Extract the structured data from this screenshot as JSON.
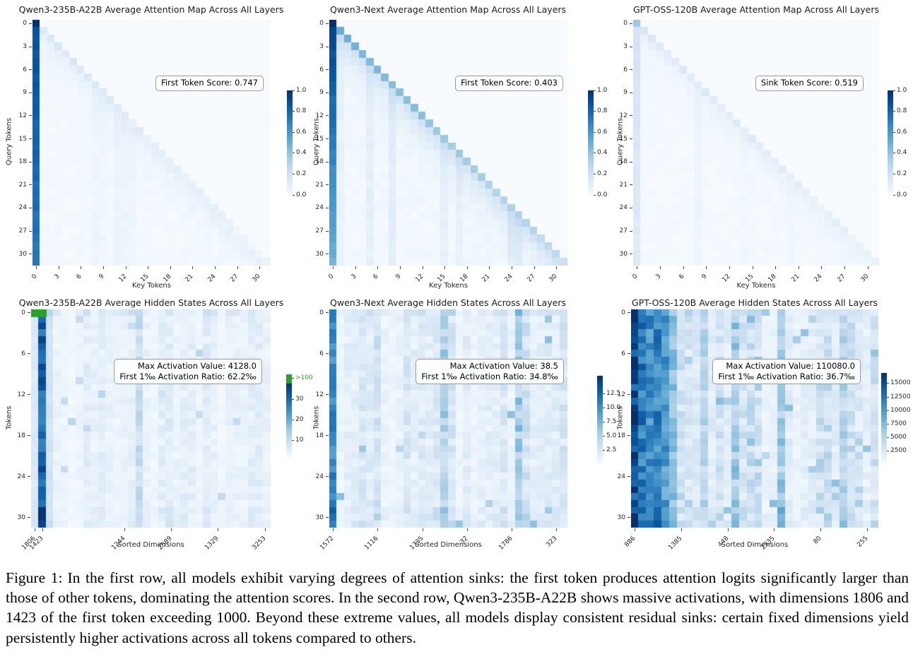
{
  "figure": {
    "caption_label": "Figure 1:",
    "caption_text": "In the first row, all models exhibit varying degrees of attention sinks: the first token produces attention logits significantly larger than those of other tokens, dominating the attention scores. In the second row, Qwen3-235B-A22B shows massive activations, with dimensions 1806 and 1423 of the first token exceeding 1000. Beyond these extreme values, all models display consistent residual sinks: certain fixed dimensions yield persistently higher activations across all tokens compared to others."
  },
  "colors": {
    "colormap": "Blues",
    "blues_stops": [
      "#f7fbff",
      "#deebf7",
      "#c6dbef",
      "#9ecae1",
      "#6baed6",
      "#4292c6",
      "#2171b5",
      "#08519c",
      "#08306b"
    ],
    "overflow_green": "#2ca02c",
    "text": "#262626"
  },
  "chart_data": [
    {
      "id": "qwen3-235b-attention",
      "type": "heatmap",
      "title": "Qwen3-235B-A22B Average Attention Map Across All Layers",
      "xlabel": "Key Tokens",
      "ylabel": "Query Tokens",
      "rows": 32,
      "cols": 32,
      "value_range": [
        0.0,
        1.0
      ],
      "x_ticks": {
        "labels": [
          "0",
          "3",
          "6",
          "9",
          "12",
          "15",
          "18",
          "21",
          "24",
          "27",
          "30"
        ],
        "pos": [
          0.0156,
          0.1094,
          0.2031,
          0.2969,
          0.3906,
          0.4844,
          0.5781,
          0.6719,
          0.7656,
          0.8594,
          0.9531
        ]
      },
      "y_ticks": {
        "labels": [
          "0",
          "3",
          "6",
          "9",
          "12",
          "15",
          "18",
          "21",
          "24",
          "27",
          "30"
        ],
        "pos": [
          0.0156,
          0.1094,
          0.2031,
          0.2969,
          0.3906,
          0.4844,
          0.5781,
          0.6719,
          0.7656,
          0.8594,
          0.9531
        ]
      },
      "colorbar": {
        "ticks": [
          {
            "label": "1.0",
            "pos": 0.0
          },
          {
            "label": "0.8",
            "pos": 0.2
          },
          {
            "label": "0.6",
            "pos": 0.4
          },
          {
            "label": "0.4",
            "pos": 0.6
          },
          {
            "label": "0.2",
            "pos": 0.8
          },
          {
            "label": "0.0",
            "pos": 1.0
          }
        ]
      },
      "annotation": {
        "lines": [
          "First Token Score: 0.747"
        ]
      },
      "pattern": {
        "kind": "attention",
        "seed": 101,
        "first_token": 1.0,
        "first_col_start": 0.88,
        "first_col_end": 0.72,
        "first_col_noise": 0.05,
        "diag_start": 0.15,
        "diag_end": 0.05,
        "near_diag": 0.09,
        "near_decay": 2.0,
        "base": 0.02,
        "stripe_prob": 0.1,
        "stripe_amp": 0.025
      }
    },
    {
      "id": "qwen3-next-attention",
      "type": "heatmap",
      "title": "Qwen3-Next Average Attention Map Across All Layers",
      "xlabel": "Key Tokens",
      "ylabel": "Query Tokens",
      "rows": 32,
      "cols": 32,
      "value_range": [
        0.0,
        1.0
      ],
      "x_ticks": {
        "labels": [
          "0",
          "3",
          "6",
          "9",
          "12",
          "15",
          "18",
          "21",
          "24",
          "27",
          "30"
        ],
        "pos": [
          0.0156,
          0.1094,
          0.2031,
          0.2969,
          0.3906,
          0.4844,
          0.5781,
          0.6719,
          0.7656,
          0.8594,
          0.9531
        ]
      },
      "y_ticks": {
        "labels": [
          "0",
          "3",
          "6",
          "9",
          "12",
          "15",
          "18",
          "21",
          "24",
          "27",
          "30"
        ],
        "pos": [
          0.0156,
          0.1094,
          0.2031,
          0.2969,
          0.3906,
          0.4844,
          0.5781,
          0.6719,
          0.7656,
          0.8594,
          0.9531
        ]
      },
      "colorbar": {
        "ticks": [
          {
            "label": "1.0",
            "pos": 0.0
          },
          {
            "label": "0.8",
            "pos": 0.2
          },
          {
            "label": "0.6",
            "pos": 0.4
          },
          {
            "label": "0.4",
            "pos": 0.6
          },
          {
            "label": "0.2",
            "pos": 0.8
          },
          {
            "label": "0.0",
            "pos": 1.0
          }
        ]
      },
      "annotation": {
        "lines": [
          "First Token Score: 0.403"
        ]
      },
      "pattern": {
        "kind": "attention",
        "seed": 202,
        "first_token": 1.0,
        "first_col_start": 0.92,
        "first_col_end": 0.48,
        "first_col_noise": 0.06,
        "diag_start": 0.5,
        "diag_end": 0.24,
        "near_diag": 0.22,
        "near_decay": 2.4,
        "base": 0.025,
        "stripe_prob": 0.22,
        "stripe_amp": 0.05
      }
    },
    {
      "id": "gpt-oss-attention",
      "type": "heatmap",
      "title": "GPT-OSS-120B Average Attention Map Across All Layers",
      "xlabel": "Key Tokens",
      "ylabel": "Query Tokens",
      "rows": 32,
      "cols": 32,
      "value_range": [
        0.0,
        1.0
      ],
      "x_ticks": {
        "labels": [
          "0",
          "3",
          "6",
          "9",
          "12",
          "15",
          "18",
          "21",
          "24",
          "27",
          "30"
        ],
        "pos": [
          0.0156,
          0.1094,
          0.2031,
          0.2969,
          0.3906,
          0.4844,
          0.5781,
          0.6719,
          0.7656,
          0.8594,
          0.9531
        ]
      },
      "y_ticks": {
        "labels": [
          "0",
          "3",
          "6",
          "9",
          "12",
          "15",
          "18",
          "21",
          "24",
          "27",
          "30"
        ],
        "pos": [
          0.0156,
          0.1094,
          0.2031,
          0.2969,
          0.3906,
          0.4844,
          0.5781,
          0.6719,
          0.7656,
          0.8594,
          0.9531
        ]
      },
      "colorbar": {
        "ticks": [
          {
            "label": "1.0",
            "pos": 0.0
          },
          {
            "label": "0.8",
            "pos": 0.2
          },
          {
            "label": "0.6",
            "pos": 0.4
          },
          {
            "label": "0.4",
            "pos": 0.6
          },
          {
            "label": "0.2",
            "pos": 0.8
          },
          {
            "label": "0.0",
            "pos": 1.0
          }
        ]
      },
      "annotation": {
        "lines": [
          "Sink Token Score: 0.519"
        ]
      },
      "pattern": {
        "kind": "attention",
        "seed": 303,
        "first_token": 0.38,
        "first_col_start": 0.18,
        "first_col_end": 0.12,
        "first_col_noise": 0.03,
        "diag_start": 0.14,
        "diag_end": 0.07,
        "near_diag": 0.07,
        "near_decay": 2.2,
        "base": 0.015,
        "stripe_prob": 0.15,
        "stripe_amp": 0.03
      }
    },
    {
      "id": "qwen3-235b-hidden",
      "type": "heatmap",
      "title": "Qwen3-235B-A22B Average Hidden States Across All Layers",
      "xlabel": "Sorted Dimensions",
      "ylabel": "Tokens",
      "rows": 32,
      "cols": 32,
      "value_range": [
        0,
        38
      ],
      "x_ticks": {
        "labels": [
          "1806",
          "1423",
          "1244",
          "2589",
          "1329",
          "3253"
        ],
        "pos": [
          0.0156,
          0.047,
          0.39,
          0.585,
          0.78,
          0.975
        ]
      },
      "y_ticks": {
        "labels": [
          "0",
          "6",
          "12",
          "18",
          "24",
          "30"
        ],
        "pos": [
          0.0156,
          0.2031,
          0.3906,
          0.5781,
          0.7656,
          0.9531
        ]
      },
      "colorbar": {
        "ticks": [
          {
            "label": ">100",
            "pos": 0.05,
            "color": "green"
          },
          {
            "label": "30",
            "pos": 0.3
          },
          {
            "label": "20",
            "pos": 0.55
          },
          {
            "label": "10",
            "pos": 0.79
          }
        ]
      },
      "annotation": {
        "lines": [
          "Max Activation Value: 4128.0",
          "First 1‰ Activation Ratio: 62.2‰"
        ]
      },
      "pattern": {
        "kind": "hidden",
        "seed": 404,
        "scale": 38,
        "strong_cols": {
          "0": 5,
          "1": 30,
          "2": 7
        },
        "strong_var": 0.18,
        "base_lo": 1.0,
        "base_hi": 4.2,
        "stripe_prob": 0.15,
        "stripe_lo": 6,
        "stripe_hi": 9,
        "scatter_prob": 0.02,
        "scatter_val": 9,
        "row0_boost": 1.7,
        "bottom_boost": 1.15,
        "green_cells": [
          [
            0,
            0
          ],
          [
            0,
            1
          ]
        ]
      }
    },
    {
      "id": "qwen3-next-hidden",
      "type": "heatmap",
      "title": "Qwen3-Next Average Hidden States Across All Layers",
      "xlabel": "Sorted Dimensions",
      "ylabel": "Tokens",
      "rows": 32,
      "cols": 32,
      "value_range": [
        0,
        15.5
      ],
      "x_ticks": {
        "labels": [
          "1572",
          "1116",
          "1735",
          "32",
          "1786",
          "323"
        ],
        "pos": [
          0.0156,
          0.2031,
          0.3906,
          0.5781,
          0.7656,
          0.9531
        ]
      },
      "y_ticks": {
        "labels": [
          "0",
          "6",
          "12",
          "18",
          "24",
          "30"
        ],
        "pos": [
          0.0156,
          0.2031,
          0.3906,
          0.5781,
          0.7656,
          0.9531
        ]
      },
      "colorbar": {
        "ticks": [
          {
            "label": "12.5",
            "pos": 0.2
          },
          {
            "label": "10.0",
            "pos": 0.36
          },
          {
            "label": "7.5",
            "pos": 0.52
          },
          {
            "label": "5.0",
            "pos": 0.68
          },
          {
            "label": "2.5",
            "pos": 0.84
          }
        ]
      },
      "annotation": {
        "lines": [
          "Max Activation Value: 38.5",
          "First 1‰ Activation Ratio: 34.8‰"
        ]
      },
      "pattern": {
        "kind": "hidden",
        "seed": 505,
        "scale": 15.5,
        "strong_cols": {
          "0": 10
        },
        "strong_var": 0.18,
        "base_lo": 0.6,
        "base_hi": 2.8,
        "stripe_prob": 0.12,
        "stripe_lo": 3.5,
        "stripe_hi": 5.5,
        "scatter_prob": 0.02,
        "scatter_val": 5.5,
        "row0_boost": 1.35,
        "bottom_boost": 1.3
      }
    },
    {
      "id": "gpt-oss-hidden",
      "type": "heatmap",
      "title": "GPT-OSS-120B Average Hidden States Across All Layers",
      "xlabel": "Sorted Dimensions",
      "ylabel": "Tokens",
      "rows": 32,
      "cols": 32,
      "value_range": [
        0,
        17000
      ],
      "x_ticks": {
        "labels": [
          "886",
          "1385",
          "448",
          "2335",
          "80",
          "255"
        ],
        "pos": [
          0.0156,
          0.2031,
          0.3906,
          0.5781,
          0.7656,
          0.9531
        ]
      },
      "y_ticks": {
        "labels": [
          "0",
          "6",
          "12",
          "18",
          "24",
          "30"
        ],
        "pos": [
          0.0156,
          0.2031,
          0.3906,
          0.5781,
          0.7656,
          0.9531
        ]
      },
      "colorbar": {
        "ticks": [
          {
            "label": "15000",
            "pos": 0.115
          },
          {
            "label": "12500",
            "pos": 0.262
          },
          {
            "label": "10000",
            "pos": 0.41
          },
          {
            "label": "7500",
            "pos": 0.557
          },
          {
            "label": "5000",
            "pos": 0.705
          },
          {
            "label": "2500",
            "pos": 0.853
          }
        ]
      },
      "annotation": {
        "lines": [
          "Max Activation Value: 110080.0",
          "First 1‰ Activation Ratio: 36.7‰"
        ]
      },
      "pattern": {
        "kind": "hidden",
        "seed": 606,
        "scale": 17000,
        "strong_cols": {
          "0": 15500,
          "1": 12000,
          "2": 10500,
          "3": 11500,
          "4": 10000,
          "5": 7000
        },
        "strong_var": 0.22,
        "base_lo": 900,
        "base_hi": 3800,
        "stripe_prob": 0.15,
        "stripe_lo": 4200,
        "stripe_hi": 6200,
        "scatter_prob": 0.05,
        "scatter_val": 6000,
        "row0_boost": 1.0,
        "bottom_boost": 1.12
      }
    }
  ]
}
